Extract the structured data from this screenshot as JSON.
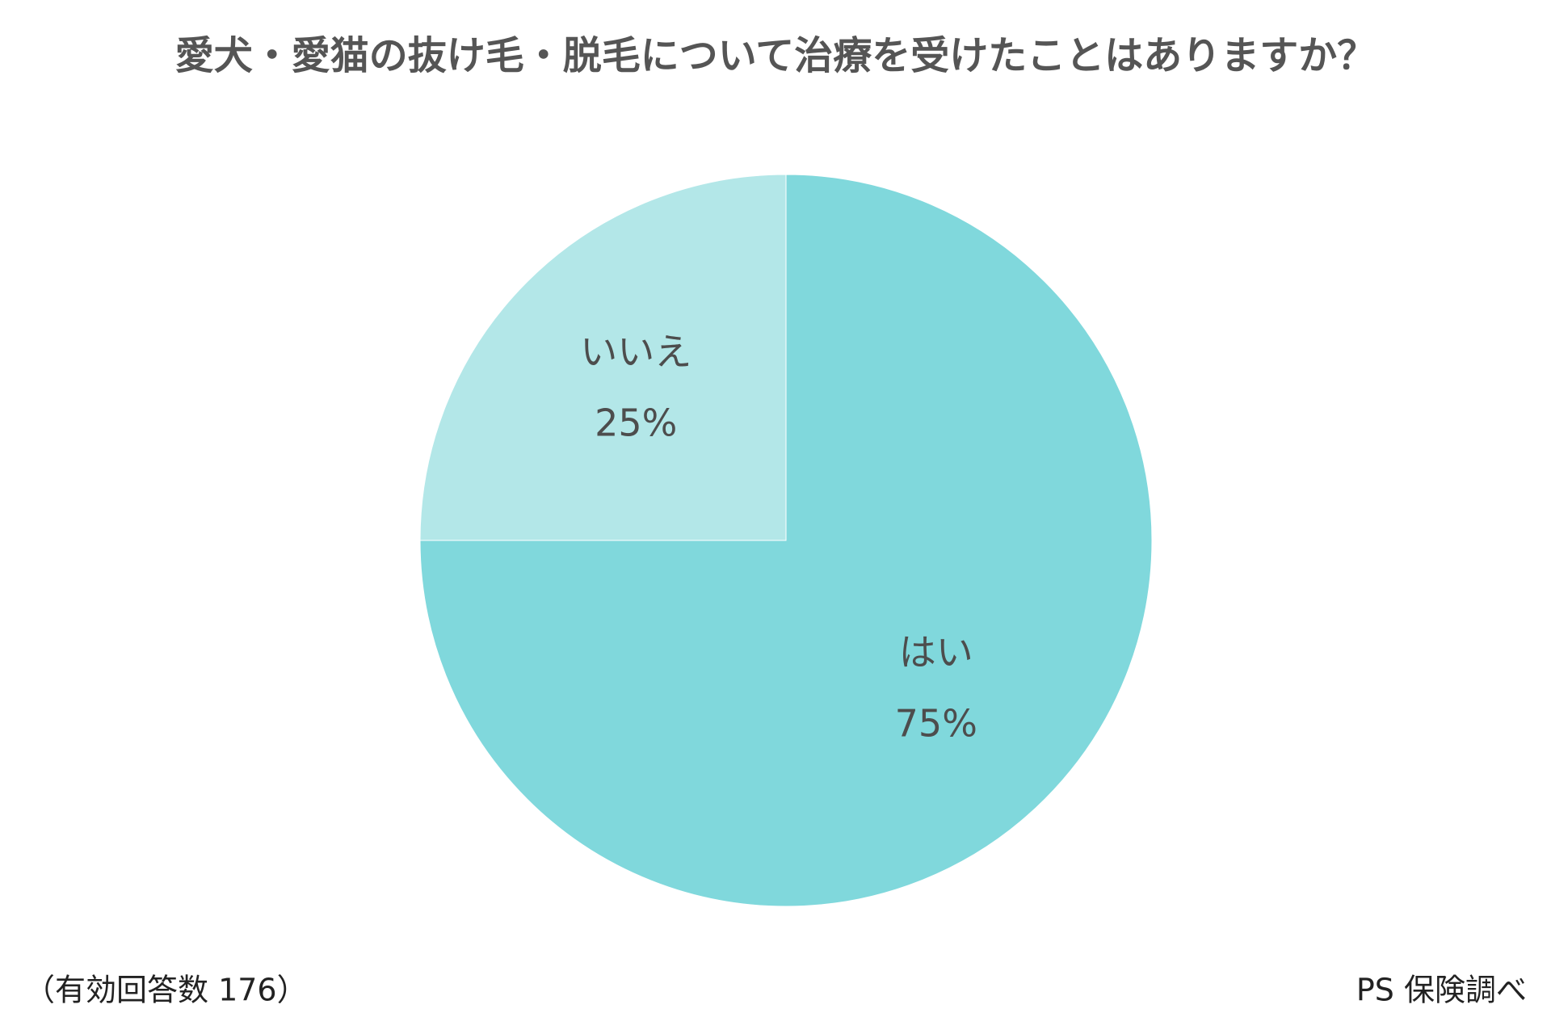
{
  "chart_data": {
    "type": "pie",
    "title": "愛犬・愛猫の抜け毛・脱毛について治療を受けたことはありますか？",
    "categories": [
      "はい",
      "いいえ"
    ],
    "values": [
      75,
      25
    ],
    "value_labels": [
      "75%",
      "25%"
    ],
    "colors": [
      "#80d8dc",
      "#b3e7e8"
    ],
    "note": "（有効回答数 176）",
    "source": "PS 保険調べ"
  }
}
